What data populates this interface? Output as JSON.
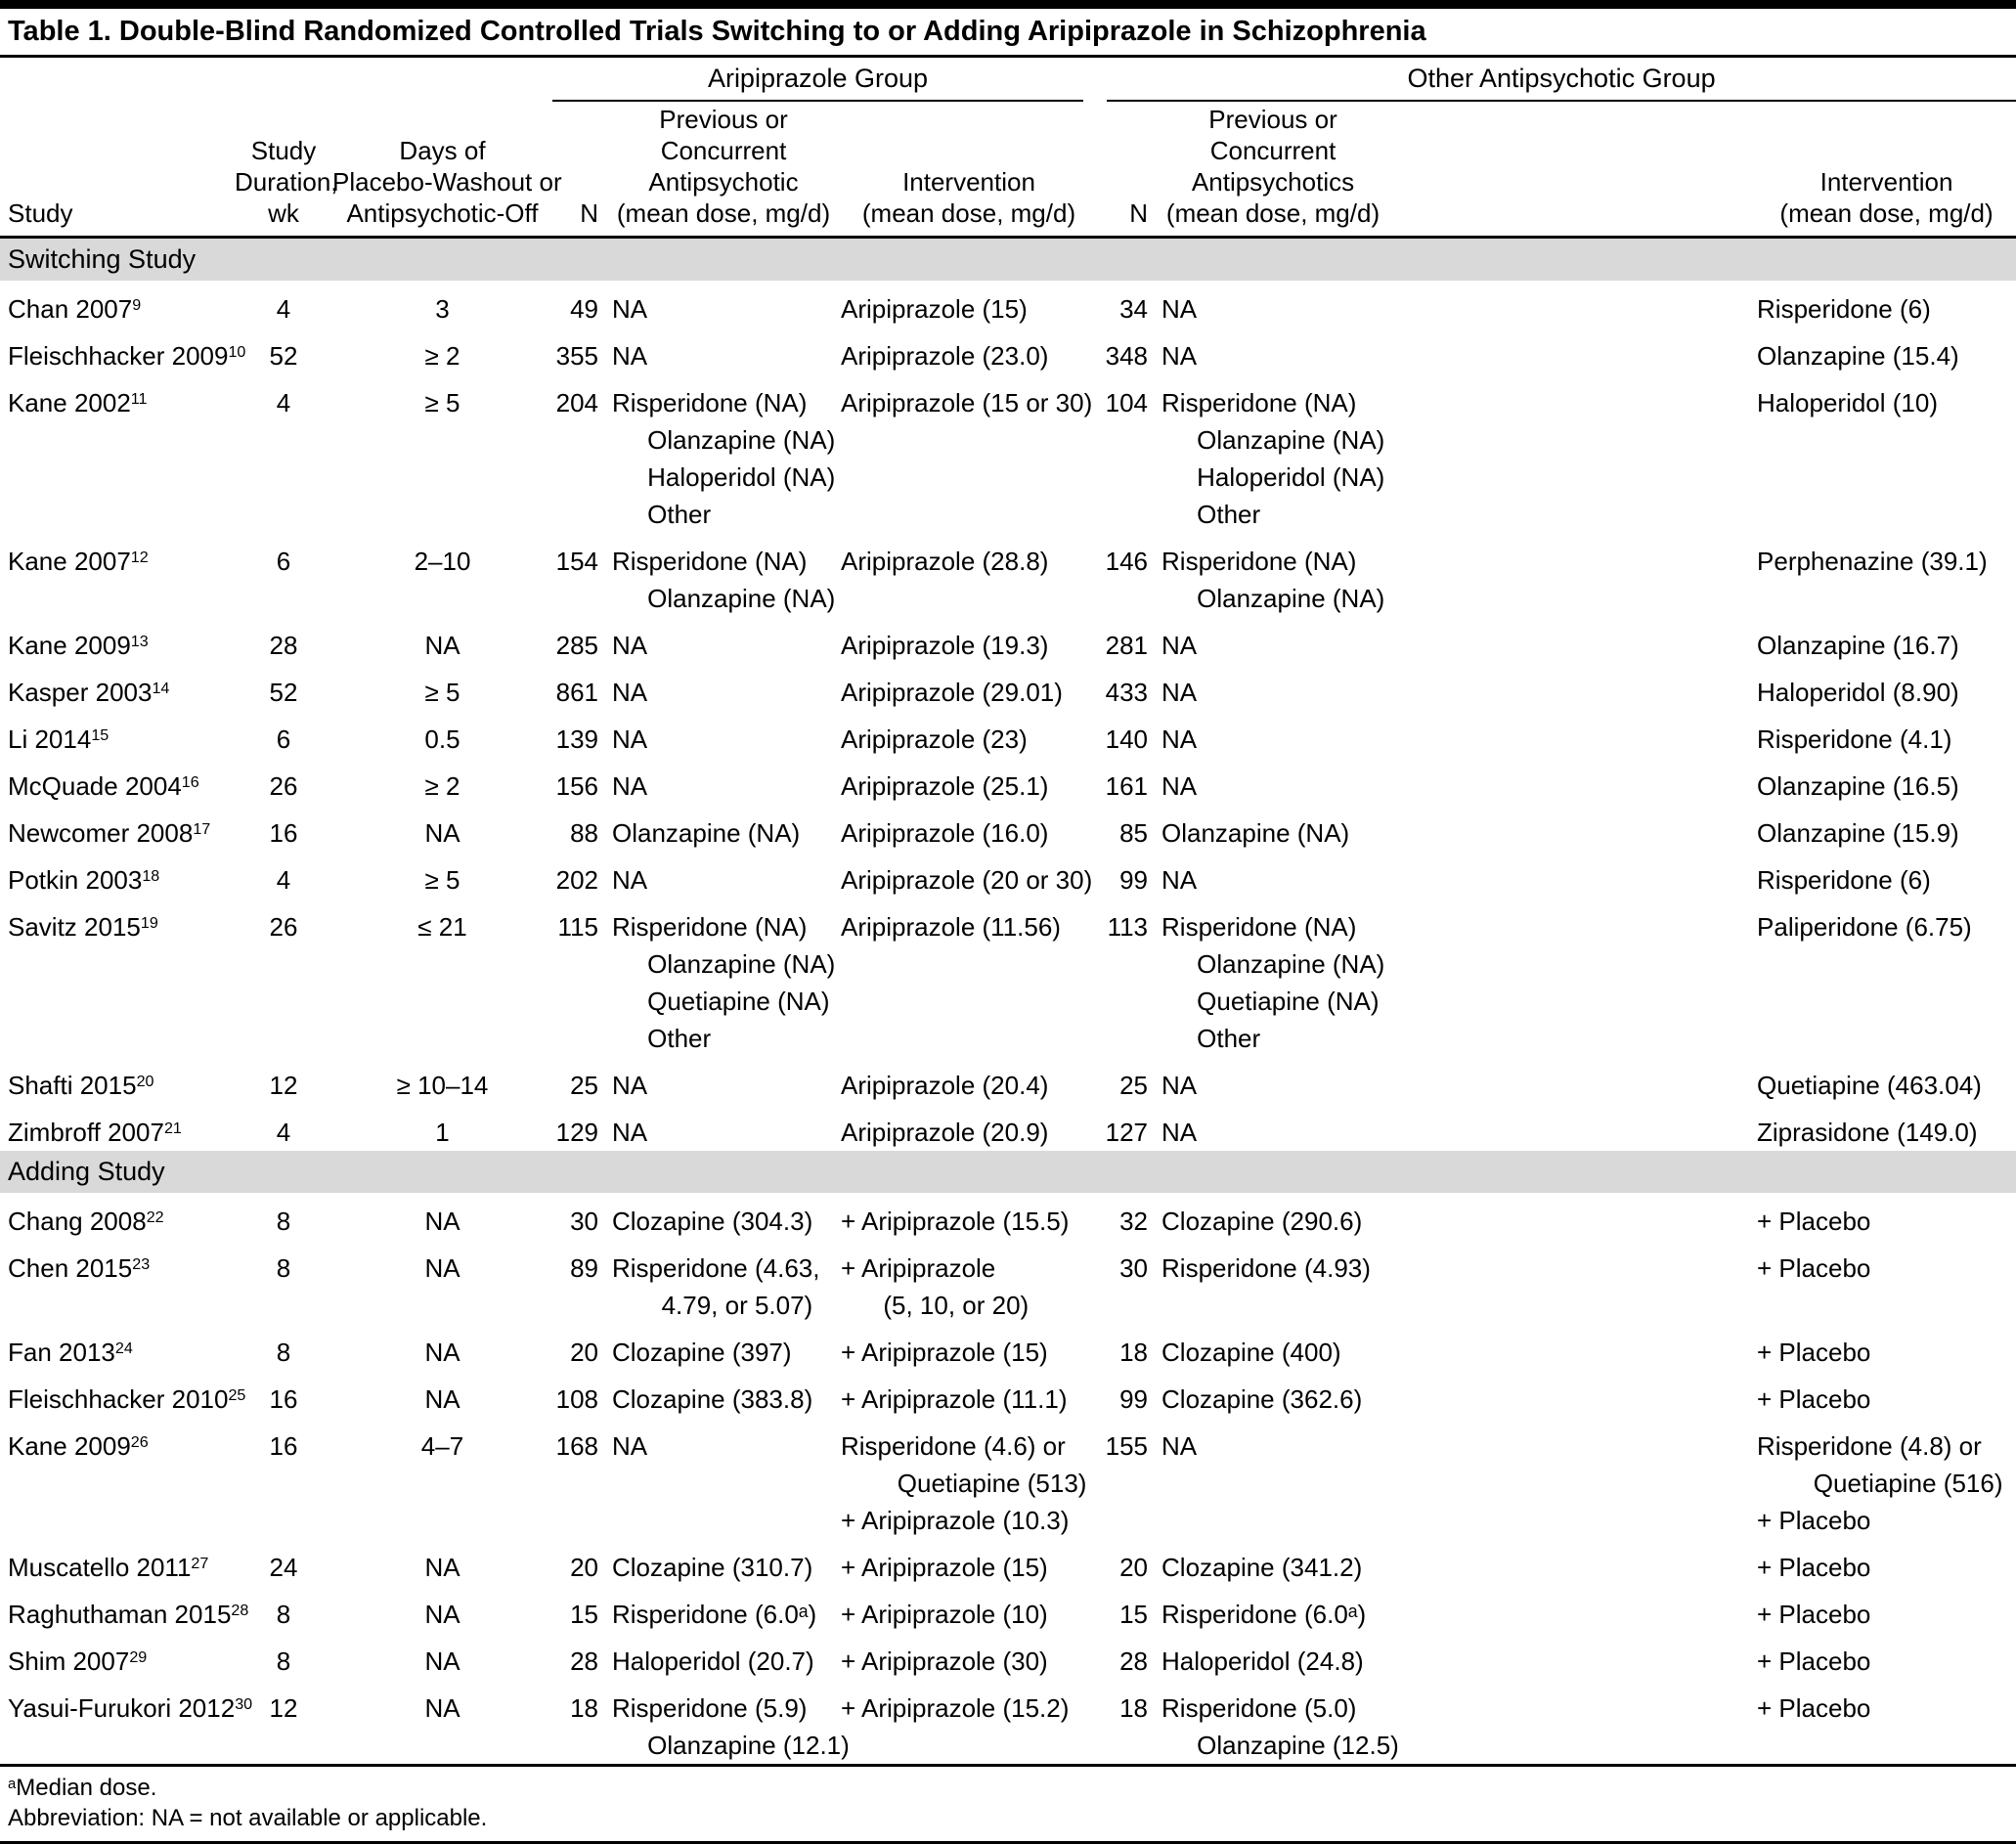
{
  "title": "Table 1. Double-Blind Randomized Controlled Trials Switching to or Adding Aripiprazole in Schizophrenia",
  "groups": {
    "aripiprazole": "Aripiprazole Group",
    "other": "Other Antipsychotic Group"
  },
  "columns": {
    "study": "Study",
    "duration": [
      "Study",
      "Duration,",
      "wk"
    ],
    "days": [
      "Days of",
      "Placebo-Washout or",
      "Antipsychotic-Off"
    ],
    "n1": "N",
    "prev1": [
      "Previous or",
      "Concurrent",
      "Antipsychotic",
      "(mean dose, mg/d)"
    ],
    "int1": [
      "Intervention",
      "(mean dose, mg/d)"
    ],
    "n2": "N",
    "prev2": [
      "Previous or",
      "Concurrent",
      "Antipsychotics",
      "(mean dose, mg/d)"
    ],
    "int2": [
      "Intervention",
      "(mean dose, mg/d)"
    ]
  },
  "sections": [
    {
      "label": "Switching Study",
      "rows": [
        {
          "study": "Chan 2007",
          "ref": "9",
          "duration": "4",
          "days": "3",
          "n1": "49",
          "prev1": [
            "NA"
          ],
          "int1": [
            "Aripiprazole (15)"
          ],
          "n2": "34",
          "prev2": [
            "NA"
          ],
          "int2": [
            "Risperidone (6)"
          ]
        },
        {
          "study": "Fleischhacker 2009",
          "ref": "10",
          "duration": "52",
          "days": "≥ 2",
          "n1": "355",
          "prev1": [
            "NA"
          ],
          "int1": [
            "Aripiprazole (23.0)"
          ],
          "n2": "348",
          "prev2": [
            "NA"
          ],
          "int2": [
            "Olanzapine (15.4)"
          ]
        },
        {
          "study": "Kane 2002",
          "ref": "11",
          "duration": "4",
          "days": "≥ 5",
          "n1": "204",
          "prev1": [
            "Risperidone (NA)",
            "     Olanzapine (NA)",
            "     Haloperidol (NA)",
            "     Other"
          ],
          "int1": [
            "Aripiprazole (15 or 30)"
          ],
          "n2": "104",
          "prev2": [
            "Risperidone (NA)",
            "     Olanzapine (NA)",
            "     Haloperidol (NA)",
            "     Other"
          ],
          "int2": [
            "Haloperidol (10)"
          ]
        },
        {
          "study": "Kane 2007",
          "ref": "12",
          "duration": "6",
          "days": "2–10",
          "n1": "154",
          "prev1": [
            "Risperidone (NA)",
            "     Olanzapine (NA)"
          ],
          "int1": [
            "Aripiprazole (28.8)"
          ],
          "n2": "146",
          "prev2": [
            "Risperidone (NA)",
            "     Olanzapine (NA)"
          ],
          "int2": [
            "Perphenazine (39.1)"
          ]
        },
        {
          "study": "Kane 2009",
          "ref": "13",
          "duration": "28",
          "days": "NA",
          "n1": "285",
          "prev1": [
            "NA"
          ],
          "int1": [
            "Aripiprazole (19.3)"
          ],
          "n2": "281",
          "prev2": [
            "NA"
          ],
          "int2": [
            "Olanzapine (16.7)"
          ]
        },
        {
          "study": "Kasper 2003",
          "ref": "14",
          "duration": "52",
          "days": "≥ 5",
          "n1": "861",
          "prev1": [
            "NA"
          ],
          "int1": [
            "Aripiprazole (29.01)"
          ],
          "n2": "433",
          "prev2": [
            "NA"
          ],
          "int2": [
            "Haloperidol (8.90)"
          ]
        },
        {
          "study": "Li 2014",
          "ref": "15",
          "duration": "6",
          "days": "0.5",
          "n1": "139",
          "prev1": [
            "NA"
          ],
          "int1": [
            "Aripiprazole (23)"
          ],
          "n2": "140",
          "prev2": [
            "NA"
          ],
          "int2": [
            "Risperidone (4.1)"
          ]
        },
        {
          "study": "McQuade 2004",
          "ref": "16",
          "duration": "26",
          "days": "≥ 2",
          "n1": "156",
          "prev1": [
            "NA"
          ],
          "int1": [
            "Aripiprazole (25.1)"
          ],
          "n2": "161",
          "prev2": [
            "NA"
          ],
          "int2": [
            "Olanzapine (16.5)"
          ]
        },
        {
          "study": "Newcomer 2008",
          "ref": "17",
          "duration": "16",
          "days": "NA",
          "n1": "88",
          "prev1": [
            "Olanzapine (NA)"
          ],
          "int1": [
            "Aripiprazole (16.0)"
          ],
          "n2": "85",
          "prev2": [
            "Olanzapine (NA)"
          ],
          "int2": [
            "Olanzapine (15.9)"
          ]
        },
        {
          "study": "Potkin 2003",
          "ref": "18",
          "duration": "4",
          "days": "≥ 5",
          "n1": "202",
          "prev1": [
            "NA"
          ],
          "int1": [
            "Aripiprazole (20 or 30)"
          ],
          "n2": "99",
          "prev2": [
            "NA"
          ],
          "int2": [
            "Risperidone (6)"
          ]
        },
        {
          "study": "Savitz 2015",
          "ref": "19",
          "duration": "26",
          "days": "≤ 21",
          "n1": "115",
          "prev1": [
            "Risperidone (NA)",
            "     Olanzapine (NA)",
            "     Quetiapine (NA)",
            "     Other"
          ],
          "int1": [
            "Aripiprazole (11.56)"
          ],
          "n2": "113",
          "prev2": [
            "Risperidone (NA)",
            "     Olanzapine (NA)",
            "     Quetiapine (NA)",
            "     Other"
          ],
          "int2": [
            "Paliperidone (6.75)"
          ]
        },
        {
          "study": "Shafti 2015",
          "ref": "20",
          "duration": "12",
          "days": "≥ 10–14",
          "n1": "25",
          "prev1": [
            "NA"
          ],
          "int1": [
            "Aripiprazole (20.4)"
          ],
          "n2": "25",
          "prev2": [
            "NA"
          ],
          "int2": [
            "Quetiapine (463.04)"
          ]
        },
        {
          "study": "Zimbroff 2007",
          "ref": "21",
          "duration": "4",
          "days": "1",
          "n1": "129",
          "prev1": [
            "NA"
          ],
          "int1": [
            "Aripiprazole (20.9)"
          ],
          "n2": "127",
          "prev2": [
            "NA"
          ],
          "int2": [
            "Ziprasidone (149.0)"
          ]
        }
      ]
    },
    {
      "label": "Adding Study",
      "rows": [
        {
          "study": "Chang 2008",
          "ref": "22",
          "duration": "8",
          "days": "NA",
          "n1": "30",
          "prev1": [
            "Clozapine (304.3)"
          ],
          "int1": [
            "+ Aripiprazole (15.5)"
          ],
          "n2": "32",
          "prev2": [
            "Clozapine (290.6)"
          ],
          "int2": [
            "+ Placebo"
          ]
        },
        {
          "study": "Chen 2015",
          "ref": "23",
          "duration": "8",
          "days": "NA",
          "n1": "89",
          "prev1": [
            "Risperidone (4.63,",
            "       4.79, or 5.07)"
          ],
          "int1": [
            "+ Aripiprazole",
            "      (5, 10, or 20)"
          ],
          "n2": "30",
          "prev2": [
            "Risperidone (4.93)"
          ],
          "int2": [
            "+ Placebo"
          ]
        },
        {
          "study": "Fan 2013",
          "ref": "24",
          "duration": "8",
          "days": "NA",
          "n1": "20",
          "prev1": [
            "Clozapine (397)"
          ],
          "int1": [
            "+ Aripiprazole (15)"
          ],
          "n2": "18",
          "prev2": [
            "Clozapine (400)"
          ],
          "int2": [
            "+ Placebo"
          ]
        },
        {
          "study": "Fleischhacker 2010",
          "ref": "25",
          "duration": "16",
          "days": "NA",
          "n1": "108",
          "prev1": [
            "Clozapine (383.8)"
          ],
          "int1": [
            "+ Aripiprazole (11.1)"
          ],
          "n2": "99",
          "prev2": [
            "Clozapine (362.6)"
          ],
          "int2": [
            "+ Placebo"
          ]
        },
        {
          "study": "Kane 2009",
          "ref": "26",
          "duration": "16",
          "days": "4–7",
          "n1": "168",
          "prev1": [
            "NA"
          ],
          "int1": [
            "Risperidone (4.6) or",
            "        Quetiapine (513)",
            "+ Aripiprazole (10.3)"
          ],
          "n2": "155",
          "prev2": [
            "NA"
          ],
          "int2": [
            "Risperidone (4.8) or",
            "        Quetiapine (516)",
            "+ Placebo"
          ]
        },
        {
          "study": "Muscatello 2011",
          "ref": "27",
          "duration": "24",
          "days": "NA",
          "n1": "20",
          "prev1": [
            "Clozapine (310.7)"
          ],
          "int1": [
            "+ Aripiprazole (15)"
          ],
          "n2": "20",
          "prev2": [
            "Clozapine (341.2)"
          ],
          "int2": [
            "+ Placebo"
          ]
        },
        {
          "study": "Raghuthaman 2015",
          "ref": "28",
          "duration": "8",
          "days": "NA",
          "n1": "15",
          "prev1": [
            "Risperidone (6.0ᵃ)"
          ],
          "int1": [
            "+ Aripiprazole (10)"
          ],
          "n2": "15",
          "prev2": [
            "Risperidone (6.0ᵃ)"
          ],
          "int2": [
            "+ Placebo"
          ]
        },
        {
          "study": "Shim 2007",
          "ref": "29",
          "duration": "8",
          "days": "NA",
          "n1": "28",
          "prev1": [
            "Haloperidol (20.7)"
          ],
          "int1": [
            "+ Aripiprazole (30)"
          ],
          "n2": "28",
          "prev2": [
            "Haloperidol (24.8)"
          ],
          "int2": [
            "+ Placebo"
          ]
        },
        {
          "study": "Yasui-Furukori 2012",
          "ref": "30",
          "duration": "12",
          "days": "NA",
          "n1": "18",
          "prev1": [
            "Risperidone (5.9)",
            "     Olanzapine (12.1)"
          ],
          "int1": [
            "+ Aripiprazole (15.2)"
          ],
          "n2": "18",
          "prev2": [
            "Risperidone (5.0)",
            "     Olanzapine (12.5)"
          ],
          "int2": [
            "+ Placebo"
          ]
        }
      ]
    }
  ],
  "footnotes": [
    {
      "sup": "a",
      "text": "Median dose."
    },
    {
      "sup": "",
      "text": "Abbreviation: NA = not available or applicable."
    }
  ]
}
